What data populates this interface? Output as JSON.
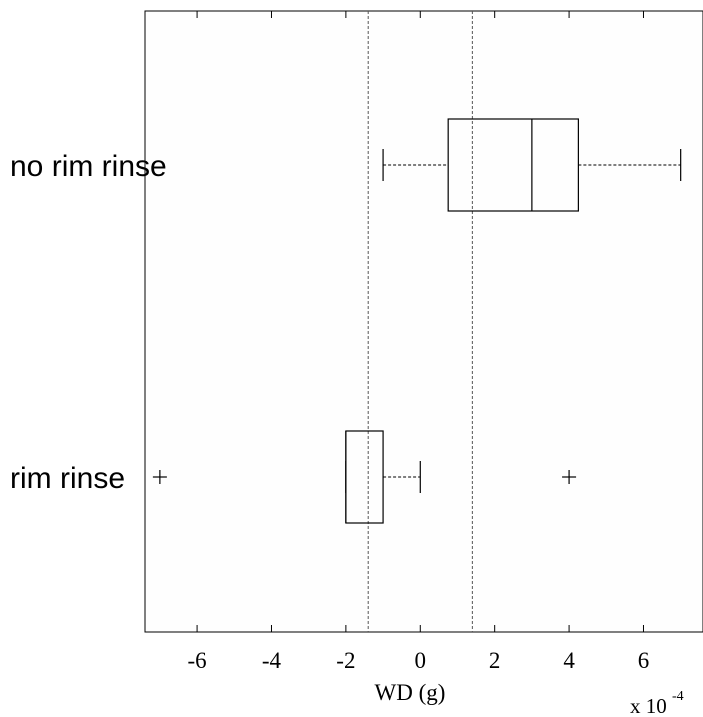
{
  "chart_data": {
    "type": "boxplot",
    "orientation": "horizontal",
    "xlabel": "WD (g)",
    "x_multiplier": {
      "base": "x 10",
      "exponent": "-4"
    },
    "xlim": [
      -7.4,
      7.6
    ],
    "x_ticks": [
      -6,
      -4,
      -2,
      0,
      2,
      4,
      6
    ],
    "x_tick_labels": [
      "-6",
      "-4",
      "-2",
      "0",
      "2",
      "4",
      "6"
    ],
    "reference_lines": [
      -1.4,
      1.4
    ],
    "categories": [
      "no rim rinse",
      "rim rinse"
    ],
    "boxes": [
      {
        "label": "no rim rinse",
        "whisker_low": -1,
        "q1": 0.75,
        "median": 3.0,
        "q3": 4.25,
        "whisker_high": 7,
        "outliers": []
      },
      {
        "label": "rim rinse",
        "whisker_low": -2,
        "q1": -2,
        "median": -2,
        "q3": -1,
        "whisker_high": 0,
        "outliers": [
          -7,
          4
        ]
      }
    ],
    "grid": false,
    "legend": false
  }
}
